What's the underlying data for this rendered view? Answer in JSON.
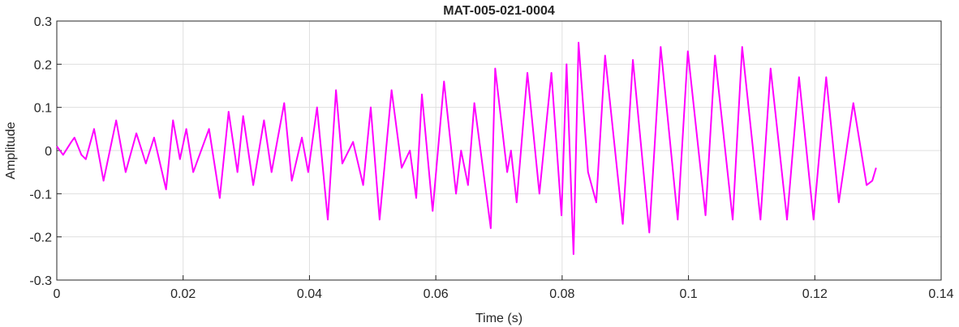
{
  "chart_data": {
    "type": "line",
    "title": "MAT-005-021-0004",
    "x_label": "Time (s)",
    "y_label": "Amplitude",
    "xlim": [
      0,
      0.14
    ],
    "xticks": [
      0,
      0.02,
      0.04,
      0.06,
      0.08,
      0.1,
      0.12,
      0.14
    ],
    "ylim": [
      -0.3,
      0.3
    ],
    "yticks": [
      -0.3,
      -0.2,
      -0.1,
      0,
      0.1,
      0.2,
      0.3
    ],
    "grid": true,
    "series": [
      {
        "color": "#ff00ff",
        "x": [
          0,
          0.001,
          0.0023,
          0.0028,
          0.0039,
          0.0046,
          0.0059,
          0.0074,
          0.0094,
          0.0109,
          0.0126,
          0.0141,
          0.0154,
          0.0173,
          0.0184,
          0.0195,
          0.0205,
          0.0216,
          0.0241,
          0.0258,
          0.0272,
          0.0286,
          0.0295,
          0.0311,
          0.0328,
          0.034,
          0.036,
          0.0372,
          0.0388,
          0.0398,
          0.0412,
          0.0429,
          0.0442,
          0.0452,
          0.0469,
          0.0485,
          0.0497,
          0.0511,
          0.053,
          0.0546,
          0.0559,
          0.0569,
          0.0578,
          0.0595,
          0.0613,
          0.0632,
          0.064,
          0.0651,
          0.0661,
          0.0687,
          0.0694,
          0.0713,
          0.0719,
          0.0728,
          0.0745,
          0.0764,
          0.0783,
          0.0799,
          0.0807,
          0.0818,
          0.0826,
          0.0841,
          0.0854,
          0.0868,
          0.0896,
          0.0912,
          0.0938,
          0.0956,
          0.0983,
          0.0999,
          0.1027,
          0.1042,
          0.107,
          0.1085,
          0.1114,
          0.113,
          0.1156,
          0.1175,
          0.1198,
          0.1218,
          0.1238,
          0.1261,
          0.1282,
          0.1291,
          0.1297
        ],
        "values": [
          0.01,
          -0.01,
          0.02,
          0.03,
          -0.01,
          -0.02,
          0.05,
          -0.07,
          0.07,
          -0.05,
          0.04,
          -0.03,
          0.03,
          -0.09,
          0.07,
          -0.02,
          0.05,
          -0.05,
          0.05,
          -0.11,
          0.09,
          -0.05,
          0.08,
          -0.08,
          0.07,
          -0.05,
          0.11,
          -0.07,
          0.03,
          -0.05,
          0.1,
          -0.16,
          0.14,
          -0.03,
          0.02,
          -0.08,
          0.1,
          -0.16,
          0.14,
          -0.04,
          0.0,
          -0.11,
          0.13,
          -0.14,
          0.16,
          -0.1,
          0.0,
          -0.08,
          0.11,
          -0.18,
          0.19,
          -0.05,
          0.0,
          -0.12,
          0.18,
          -0.1,
          0.18,
          -0.15,
          0.2,
          -0.24,
          0.25,
          -0.05,
          -0.12,
          0.22,
          -0.17,
          0.21,
          -0.19,
          0.24,
          -0.16,
          0.23,
          -0.15,
          0.22,
          -0.16,
          0.24,
          -0.16,
          0.19,
          -0.16,
          0.17,
          -0.16,
          0.17,
          -0.12,
          0.11,
          -0.08,
          -0.07,
          -0.04
        ]
      }
    ]
  }
}
